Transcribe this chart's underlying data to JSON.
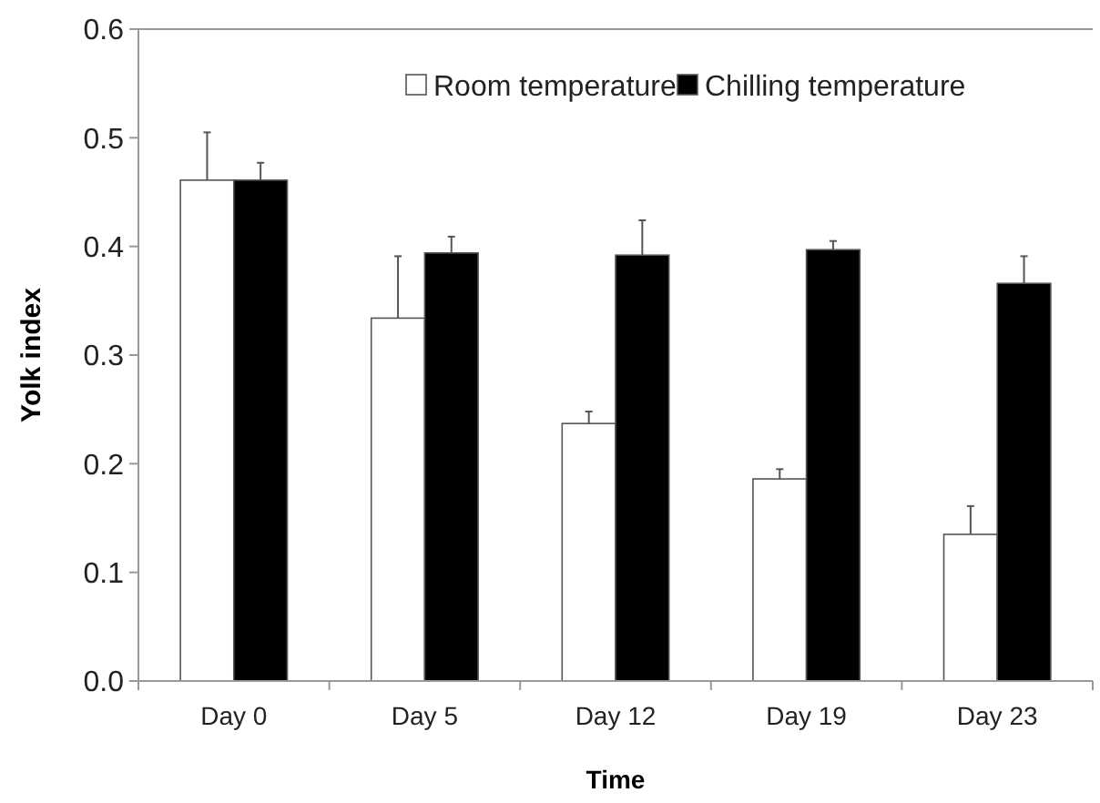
{
  "chart_data": {
    "type": "bar",
    "xlabel": "Time",
    "ylabel": "Yolk index",
    "categories": [
      "Day 0",
      "Day 5",
      "Day 12",
      "Day 19",
      "Day 23"
    ],
    "series": [
      {
        "name": "Room temperature",
        "color": "#ffffff",
        "values": [
          0.461,
          0.334,
          0.237,
          0.186,
          0.135
        ],
        "errors": [
          0.044,
          0.057,
          0.011,
          0.009,
          0.026
        ]
      },
      {
        "name": "Chilling temperature",
        "color": "#000000",
        "values": [
          0.461,
          0.394,
          0.392,
          0.397,
          0.366
        ],
        "errors": [
          0.016,
          0.015,
          0.032,
          0.008,
          0.025
        ]
      }
    ],
    "ylim": [
      0,
      0.6
    ],
    "yticks": [
      {
        "value": 0,
        "label": "0.0"
      },
      {
        "value": 0.1,
        "label": "0.1"
      },
      {
        "value": 0.2,
        "label": "0.2"
      },
      {
        "value": 0.3,
        "label": "0.3"
      },
      {
        "value": 0.4,
        "label": "0.4"
      },
      {
        "value": 0.5,
        "label": "0.5"
      },
      {
        "value": 0.6,
        "label": "0.6"
      }
    ],
    "grid": false,
    "legend": "top"
  }
}
